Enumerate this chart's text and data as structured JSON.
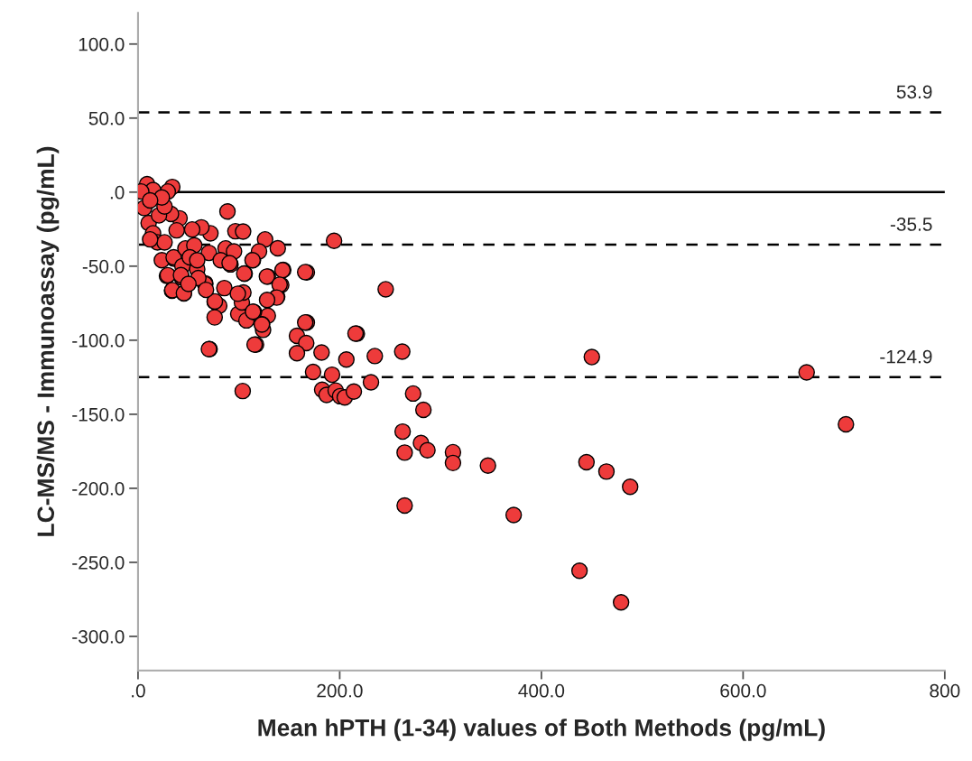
{
  "chart_data": {
    "type": "scatter",
    "xlabel": "Mean hPTH (1-34) values of Both Methods (pg/mL)",
    "ylabel": "LC-MS/MS - Immunoassay (pg/mL)",
    "xlim": [
      0,
      800
    ],
    "ylim": [
      -323,
      121
    ],
    "xticks": [
      {
        "value": 0,
        "label": ".0"
      },
      {
        "value": 200,
        "label": "200.0"
      },
      {
        "value": 400,
        "label": "400.0"
      },
      {
        "value": 600,
        "label": "600.0"
      },
      {
        "value": 800,
        "label": "800"
      }
    ],
    "yticks": [
      {
        "value": 100,
        "label": "100.0"
      },
      {
        "value": 50,
        "label": "50.0"
      },
      {
        "value": 0,
        "label": ".0"
      },
      {
        "value": -50,
        "label": "-50.0"
      },
      {
        "value": -100,
        "label": "-100.0"
      },
      {
        "value": -150,
        "label": "-150.0"
      },
      {
        "value": -200,
        "label": "-200.0"
      },
      {
        "value": -250,
        "label": "-250.0"
      },
      {
        "value": -300,
        "label": "-300.0"
      }
    ],
    "grid": false,
    "legend": false,
    "marker": "circle",
    "ref_lines": [
      {
        "axis": "y",
        "value": 0,
        "label": null,
        "line_style": "solid",
        "color": "#000000"
      },
      {
        "axis": "y",
        "value": 53.9,
        "label": "53.9",
        "line_style": "dashed",
        "color": "#000000"
      },
      {
        "axis": "y",
        "value": -35.5,
        "label": "-35.5",
        "line_style": "dashed",
        "color": "#000000"
      },
      {
        "axis": "y",
        "value": -124.9,
        "label": "-124.9",
        "line_style": "dashed",
        "color": "#000000"
      }
    ],
    "series": [
      {
        "color": "#ee3b3b",
        "x": [
          245.6,
          167.4,
          144,
          142,
          138,
          128.7,
          123,
          124,
          117,
          167.4,
          157.6,
          166.8,
          157.6,
          182,
          217,
          206.6,
          234.8,
          262,
          450,
          173.6,
          192.4,
          182.6,
          187,
          196,
          200.4,
          205,
          214,
          231,
          103.8,
          71,
          272.8,
          283,
          262.4,
          280.6,
          287,
          264.4,
          312.3,
          312.3,
          347,
          444.7,
          464.5,
          488,
          264.4,
          372.5,
          437.8,
          479,
          663,
          702,
          105.8,
          128.7,
          114,
          85.6,
          76,
          80.5,
          76,
          99.4,
          107.5,
          115,
          103,
          104.5,
          99,
          33.7,
          45.5,
          28.7,
          43.2,
          66.7,
          91.7,
          35.7,
          88.7,
          96.6,
          104.2,
          126,
          194.4,
          138.6,
          120,
          113.6,
          71.8,
          62.8,
          53.7,
          41.2,
          32.7,
          9,
          34,
          29.5,
          14.9,
          3.2,
          6.1,
          10.5,
          14.9,
          19.3,
          23.6,
          29.5,
          34,
          45.5,
          35.3,
          44,
          47,
          58.7,
          70.3,
          66.5,
          76.2,
          86.8,
          95.2,
          82,
          90.8,
          105.3,
          127.8,
          143.3,
          165.8,
          140.4,
          137.5,
          128,
          114,
          122.8,
          115.6,
          70.3,
          165.8,
          215.7,
          55.8,
          51.4,
          58.7,
          26.3,
          38.3,
          20.8,
          26.3,
          23.6,
          12,
          12,
          42.6,
          59.8,
          50,
          67.4
        ],
        "values": [
          -65.6,
          -54.2,
          -52.5,
          -62.8,
          -70.7,
          -83.5,
          -89.3,
          -93,
          -103,
          -88,
          -97,
          -101.9,
          -108.8,
          -108.3,
          -95.6,
          -113,
          -110.7,
          -107.7,
          -111.4,
          -121.4,
          -123.3,
          -133.5,
          -137,
          -134,
          -137.8,
          -138.6,
          -134.7,
          -128.4,
          -134.3,
          -106,
          -136,
          -147,
          -161.7,
          -169.4,
          -174.3,
          -175.9,
          -175.6,
          -182.9,
          -184.7,
          -182.4,
          -188.7,
          -199,
          -211.6,
          -218,
          -255.7,
          -277,
          -121.7,
          -156.8,
          -55,
          -57,
          -45.8,
          -64.8,
          -74,
          -76.8,
          -84.6,
          -82.3,
          -86.6,
          -81,
          -74.5,
          -67.8,
          -68.6,
          -66.6,
          -68.4,
          -56.7,
          -57.4,
          -61.6,
          -48.8,
          -45,
          -13.1,
          -26.4,
          -26.6,
          -31.9,
          -32.9,
          -37.9,
          -40,
          -46,
          -27.8,
          -23.8,
          -25.2,
          -17.7,
          -14.7,
          5.4,
          3.5,
          0.4,
          1.4,
          0.4,
          -10.7,
          -20.8,
          -27.8,
          -33.9,
          -46,
          -56.1,
          -66.2,
          -68.2,
          -44,
          -50,
          -38,
          -52,
          -41,
          -62.2,
          -73.8,
          -38,
          -40,
          -46,
          -48,
          -55,
          -57,
          -52.7,
          -54,
          -62.5,
          -71.2,
          -72.8,
          -80.7,
          -89.4,
          -103,
          -106,
          -88,
          -95.5,
          -35.9,
          -44,
          -46,
          -33.9,
          -25.8,
          -15.7,
          -9.7,
          -3.6,
          -5.6,
          -31.9,
          -56,
          -58,
          -62,
          -66
        ]
      }
    ]
  }
}
